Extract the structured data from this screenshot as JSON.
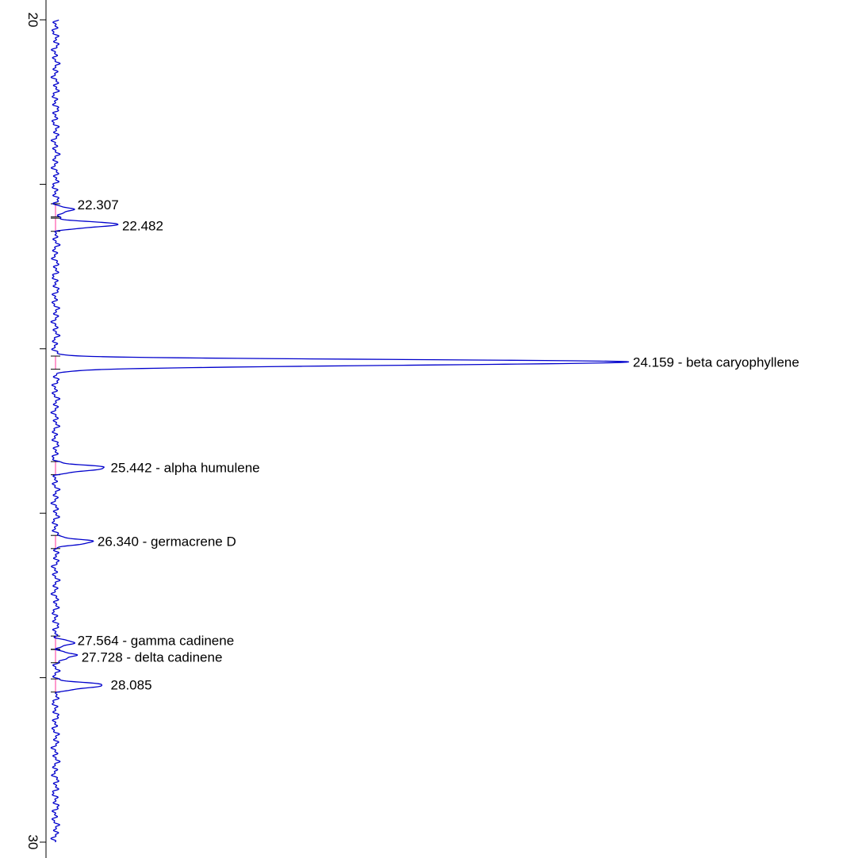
{
  "chart_data": {
    "type": "line",
    "orientation": "vertical-time-axis",
    "xlabel": "",
    "ylabel": "",
    "time_range": [
      20,
      30
    ],
    "time_ticks": [
      20,
      22,
      24,
      26,
      28,
      30
    ],
    "time_tick_labels": [
      "20",
      "",
      "",
      "",
      "",
      "30"
    ],
    "signal_range": [
      0,
      100
    ],
    "colors": {
      "trace": "#0000cc",
      "baseline": "#ff3399",
      "axis": "#000000"
    },
    "grid": false,
    "peaks": [
      {
        "rt": 22.307,
        "height": 3.0,
        "label": "22.307"
      },
      {
        "rt": 22.482,
        "height": 10.8,
        "label": "22.482"
      },
      {
        "rt": 24.159,
        "height": 100,
        "label": "24.159 -  beta caryophyllene"
      },
      {
        "rt": 25.442,
        "height": 8.8,
        "label": "25.442 -  alpha humulene"
      },
      {
        "rt": 26.34,
        "height": 6.5,
        "label": "26.340 -  germacrene D"
      },
      {
        "rt": 27.564,
        "height": 3.0,
        "label": "27.564 -  gamma cadinene"
      },
      {
        "rt": 27.728,
        "height": 3.7,
        "label": "27.728 -  delta cadinene"
      },
      {
        "rt": 28.085,
        "height": 8.8,
        "label": "28.085"
      }
    ]
  }
}
